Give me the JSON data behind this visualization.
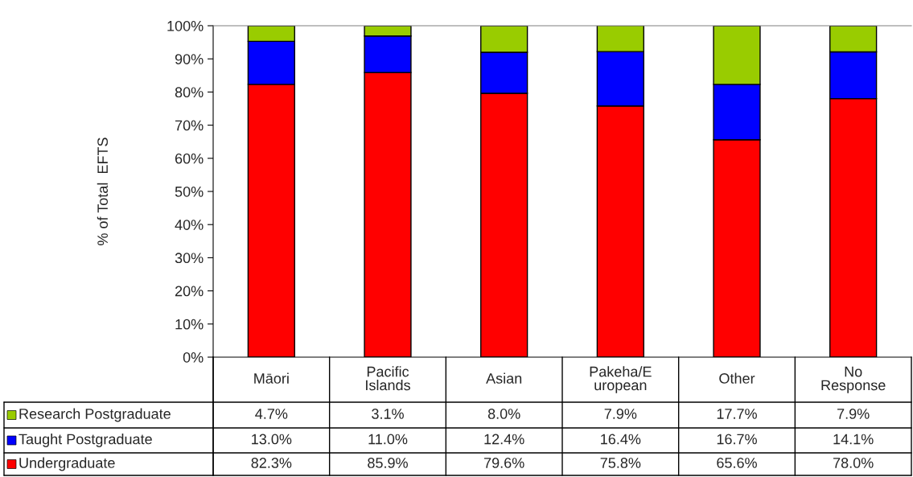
{
  "chart_data": {
    "type": "bar",
    "stacked": true,
    "ylabel": "% of Total  EFTS",
    "categories": [
      "Māori",
      "Pacific\nIslands",
      "Asian",
      "Pakeha/E\nuropean",
      "Other",
      "No\nResponse"
    ],
    "series": [
      {
        "name": "Undergraduate",
        "color": "#ff0000",
        "values": [
          82.3,
          85.9,
          79.6,
          75.8,
          65.6,
          78.0
        ],
        "value_labels": [
          "82.3%",
          "85.9%",
          "79.6%",
          "75.8%",
          "65.6%",
          "78.0%"
        ]
      },
      {
        "name": "Taught Postgraduate",
        "color": "#0000ff",
        "values": [
          13.0,
          11.0,
          12.4,
          16.4,
          16.7,
          14.1
        ],
        "value_labels": [
          "13.0%",
          "11.0%",
          "12.4%",
          "16.4%",
          "16.7%",
          "14.1%"
        ]
      },
      {
        "name": "Research Postgraduate",
        "color": "#99cc00",
        "values": [
          4.7,
          3.1,
          8.0,
          7.9,
          17.7,
          7.9
        ],
        "value_labels": [
          "4.7%",
          "3.1%",
          "8.0%",
          "7.9%",
          "17.7%",
          "7.9%"
        ]
      }
    ],
    "ylim": [
      0,
      100
    ],
    "yticks": [
      {
        "value": 0,
        "label": "0%"
      },
      {
        "value": 10,
        "label": "10%"
      },
      {
        "value": 20,
        "label": "20%"
      },
      {
        "value": 30,
        "label": "30%"
      },
      {
        "value": 40,
        "label": "40%"
      },
      {
        "value": 50,
        "label": "50%"
      },
      {
        "value": 60,
        "label": "60%"
      },
      {
        "value": 70,
        "label": "70%"
      },
      {
        "value": 80,
        "label": "80%"
      },
      {
        "value": 90,
        "label": "90%"
      },
      {
        "value": 100,
        "label": "100%"
      }
    ],
    "grid": false,
    "legend": "bottom left"
  }
}
